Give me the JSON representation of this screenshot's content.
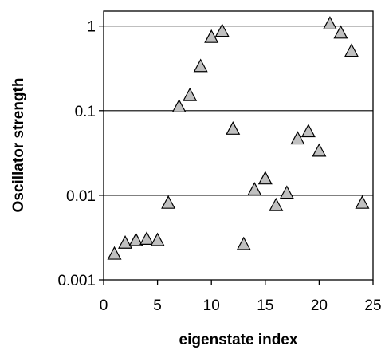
{
  "chart_data": {
    "type": "scatter",
    "title": "",
    "xlabel": "eigenstate index",
    "ylabel": "Oscillator strength",
    "xlim": [
      0,
      25
    ],
    "ylim": [
      0.001,
      1.5
    ],
    "yscale": "log",
    "grid": "horizontal lines at 0.01, 0.1, 1",
    "marker": "triangle",
    "marker_color": "#c0c0c0",
    "x_ticks": [
      "0",
      "5",
      "10",
      "15",
      "20",
      "25"
    ],
    "y_ticks": [
      "0.001",
      "0.01",
      "0.1",
      "1"
    ],
    "points": [
      {
        "x": 1,
        "y": 0.002
      },
      {
        "x": 2,
        "y": 0.0027
      },
      {
        "x": 3,
        "y": 0.0029
      },
      {
        "x": 4,
        "y": 0.003
      },
      {
        "x": 5,
        "y": 0.0029
      },
      {
        "x": 6,
        "y": 0.008
      },
      {
        "x": 7,
        "y": 0.11
      },
      {
        "x": 8,
        "y": 0.15
      },
      {
        "x": 9,
        "y": 0.33
      },
      {
        "x": 10,
        "y": 0.73
      },
      {
        "x": 11,
        "y": 0.86
      },
      {
        "x": 12,
        "y": 0.06
      },
      {
        "x": 13,
        "y": 0.0026
      },
      {
        "x": 14,
        "y": 0.0115
      },
      {
        "x": 15,
        "y": 0.0155
      },
      {
        "x": 16,
        "y": 0.0075
      },
      {
        "x": 17,
        "y": 0.0105
      },
      {
        "x": 18,
        "y": 0.046
      },
      {
        "x": 19,
        "y": 0.056
      },
      {
        "x": 20,
        "y": 0.033
      },
      {
        "x": 21,
        "y": 1.05
      },
      {
        "x": 22,
        "y": 0.82
      },
      {
        "x": 23,
        "y": 0.5
      },
      {
        "x": 24,
        "y": 0.008
      }
    ]
  }
}
